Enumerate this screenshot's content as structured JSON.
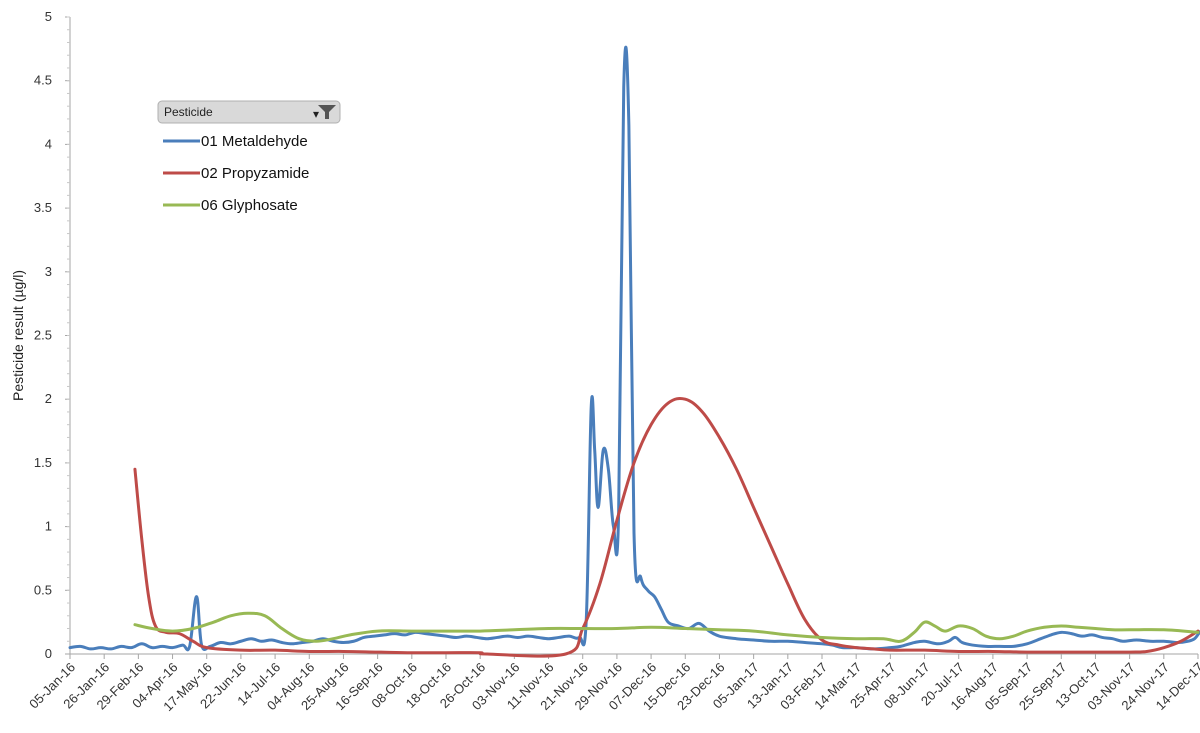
{
  "chart_data": {
    "type": "line",
    "ylabel": "Pesticide result (µg/l)",
    "ylim": [
      0,
      5
    ],
    "yticks": [
      "0",
      "0.5",
      "1",
      "1.5",
      "2",
      "2.5",
      "3",
      "3.5",
      "4",
      "4.5",
      "5"
    ],
    "x_categories": [
      "05-Jan-16",
      "26-Jan-16",
      "29-Feb-16",
      "04-Apr-16",
      "17-May-16",
      "22-Jun-16",
      "14-Jul-16",
      "04-Aug-16",
      "25-Aug-16",
      "16-Sep-16",
      "08-Oct-16",
      "18-Oct-16",
      "26-Oct-16",
      "03-Nov-16",
      "11-Nov-16",
      "21-Nov-16",
      "29-Nov-16",
      "07-Dec-16",
      "15-Dec-16",
      "23-Dec-16",
      "05-Jan-17",
      "13-Jan-17",
      "03-Feb-17",
      "14-Mar-17",
      "25-Apr-17",
      "08-Jun-17",
      "20-Jul-17",
      "16-Aug-17",
      "05-Sep-17",
      "25-Sep-17",
      "13-Oct-17",
      "03-Nov-17",
      "24-Nov-17",
      "14-Dec-17"
    ],
    "legend": {
      "title": "Pesticide",
      "position": "top-left"
    },
    "series": [
      {
        "name": "01 Metaldehyde",
        "color": "#4a7ebb",
        "points": [
          [
            0,
            0.05
          ],
          [
            0.3,
            0.06
          ],
          [
            0.6,
            0.04
          ],
          [
            0.9,
            0.05
          ],
          [
            1.2,
            0.04
          ],
          [
            1.5,
            0.06
          ],
          [
            1.8,
            0.05
          ],
          [
            2.1,
            0.08
          ],
          [
            2.4,
            0.05
          ],
          [
            2.7,
            0.06
          ],
          [
            3.0,
            0.05
          ],
          [
            3.3,
            0.07
          ],
          [
            3.5,
            0.06
          ],
          [
            3.7,
            0.45
          ],
          [
            3.85,
            0.07
          ],
          [
            4.1,
            0.06
          ],
          [
            4.4,
            0.09
          ],
          [
            4.7,
            0.08
          ],
          [
            5.0,
            0.1
          ],
          [
            5.3,
            0.12
          ],
          [
            5.6,
            0.1
          ],
          [
            5.9,
            0.11
          ],
          [
            6.2,
            0.09
          ],
          [
            6.5,
            0.08
          ],
          [
            6.8,
            0.09
          ],
          [
            7.1,
            0.1
          ],
          [
            7.4,
            0.12
          ],
          [
            7.7,
            0.1
          ],
          [
            8.0,
            0.09
          ],
          [
            8.3,
            0.1
          ],
          [
            8.6,
            0.13
          ],
          [
            8.9,
            0.14
          ],
          [
            9.2,
            0.15
          ],
          [
            9.5,
            0.16
          ],
          [
            9.8,
            0.15
          ],
          [
            10.1,
            0.17
          ],
          [
            10.4,
            0.16
          ],
          [
            10.7,
            0.15
          ],
          [
            11.0,
            0.14
          ],
          [
            11.3,
            0.13
          ],
          [
            11.6,
            0.14
          ],
          [
            11.9,
            0.13
          ],
          [
            12.2,
            0.12
          ],
          [
            12.5,
            0.13
          ],
          [
            12.8,
            0.14
          ],
          [
            13.1,
            0.13
          ],
          [
            13.4,
            0.14
          ],
          [
            13.7,
            0.13
          ],
          [
            14.0,
            0.12
          ],
          [
            14.3,
            0.13
          ],
          [
            14.6,
            0.14
          ],
          [
            14.9,
            0.13
          ],
          [
            15.1,
            0.25
          ],
          [
            15.25,
            1.95
          ],
          [
            15.35,
            1.6
          ],
          [
            15.45,
            1.15
          ],
          [
            15.6,
            1.6
          ],
          [
            15.75,
            1.45
          ],
          [
            15.9,
            1.0
          ],
          [
            16.05,
            1.1
          ],
          [
            16.2,
            4.45
          ],
          [
            16.35,
            4.15
          ],
          [
            16.5,
            0.95
          ],
          [
            16.7,
            0.6
          ],
          [
            16.9,
            0.5
          ],
          [
            17.1,
            0.45
          ],
          [
            17.3,
            0.35
          ],
          [
            17.5,
            0.25
          ],
          [
            17.8,
            0.22
          ],
          [
            18.1,
            0.2
          ],
          [
            18.4,
            0.24
          ],
          [
            18.7,
            0.18
          ],
          [
            19.0,
            0.14
          ],
          [
            19.5,
            0.12
          ],
          [
            20.0,
            0.11
          ],
          [
            20.5,
            0.1
          ],
          [
            21.0,
            0.1
          ],
          [
            21.5,
            0.09
          ],
          [
            22.0,
            0.08
          ],
          [
            22.3,
            0.07
          ],
          [
            22.6,
            0.05
          ],
          [
            23.0,
            0.05
          ],
          [
            23.5,
            0.04
          ],
          [
            24.0,
            0.05
          ],
          [
            24.3,
            0.06
          ],
          [
            24.7,
            0.09
          ],
          [
            25.0,
            0.1
          ],
          [
            25.4,
            0.08
          ],
          [
            25.7,
            0.1
          ],
          [
            25.9,
            0.13
          ],
          [
            26.1,
            0.09
          ],
          [
            26.4,
            0.07
          ],
          [
            26.8,
            0.06
          ],
          [
            27.2,
            0.06
          ],
          [
            27.6,
            0.06
          ],
          [
            28.0,
            0.08
          ],
          [
            28.4,
            0.12
          ],
          [
            28.7,
            0.15
          ],
          [
            29.0,
            0.17
          ],
          [
            29.3,
            0.16
          ],
          [
            29.6,
            0.14
          ],
          [
            29.9,
            0.15
          ],
          [
            30.2,
            0.13
          ],
          [
            30.5,
            0.12
          ],
          [
            30.8,
            0.1
          ],
          [
            31.2,
            0.11
          ],
          [
            31.6,
            0.1
          ],
          [
            32.0,
            0.1
          ],
          [
            32.4,
            0.09
          ],
          [
            32.7,
            0.1
          ],
          [
            32.9,
            0.12
          ],
          [
            33.1,
            0.18
          ],
          [
            33.3,
            0.15
          ],
          [
            33.5,
            0.12
          ],
          [
            33.75,
            0.1
          ]
        ]
      },
      {
        "name": "02 Propyzamide",
        "color": "#be4b48",
        "points": [
          [
            1.9,
            1.45
          ],
          [
            2.1,
            0.9
          ],
          [
            2.3,
            0.45
          ],
          [
            2.5,
            0.22
          ],
          [
            2.8,
            0.17
          ],
          [
            3.2,
            0.16
          ],
          [
            3.6,
            0.1
          ],
          [
            4.0,
            0.05
          ],
          [
            5.0,
            0.03
          ],
          [
            6.0,
            0.03
          ],
          [
            7.0,
            0.02
          ],
          [
            8.0,
            0.02
          ],
          [
            9.0,
            0.015
          ],
          [
            10.0,
            0.01
          ],
          [
            11.0,
            0.01
          ],
          [
            12.0,
            0.01
          ],
          [
            12.2,
            0.0
          ],
          [
            14.5,
            0.0
          ],
          [
            15.0,
            0.2
          ],
          [
            15.5,
            0.55
          ],
          [
            16.0,
            1.05
          ],
          [
            16.5,
            1.5
          ],
          [
            17.0,
            1.8
          ],
          [
            17.5,
            1.97
          ],
          [
            18.0,
            2.0
          ],
          [
            18.5,
            1.9
          ],
          [
            19.0,
            1.7
          ],
          [
            19.5,
            1.45
          ],
          [
            20.0,
            1.15
          ],
          [
            20.5,
            0.85
          ],
          [
            21.0,
            0.55
          ],
          [
            21.5,
            0.27
          ],
          [
            22.0,
            0.11
          ],
          [
            22.5,
            0.07
          ],
          [
            23.0,
            0.05
          ],
          [
            23.5,
            0.04
          ],
          [
            24.0,
            0.03
          ],
          [
            25.0,
            0.03
          ],
          [
            26.0,
            0.02
          ],
          [
            27.0,
            0.02
          ],
          [
            28.0,
            0.015
          ],
          [
            29.0,
            0.015
          ],
          [
            30.0,
            0.015
          ],
          [
            31.0,
            0.015
          ],
          [
            31.5,
            0.02
          ],
          [
            32.0,
            0.05
          ],
          [
            32.5,
            0.1
          ],
          [
            33.0,
            0.18
          ]
        ]
      },
      {
        "name": "06 Glyphosate",
        "color": "#98b954",
        "points": [
          [
            1.9,
            0.23
          ],
          [
            2.4,
            0.2
          ],
          [
            3.0,
            0.18
          ],
          [
            3.6,
            0.2
          ],
          [
            4.2,
            0.25
          ],
          [
            4.7,
            0.3
          ],
          [
            5.2,
            0.32
          ],
          [
            5.7,
            0.3
          ],
          [
            6.2,
            0.2
          ],
          [
            6.7,
            0.12
          ],
          [
            7.2,
            0.1
          ],
          [
            7.7,
            0.12
          ],
          [
            8.2,
            0.15
          ],
          [
            9.0,
            0.18
          ],
          [
            10.0,
            0.18
          ],
          [
            11.0,
            0.18
          ],
          [
            12.0,
            0.18
          ],
          [
            13.0,
            0.19
          ],
          [
            14.0,
            0.2
          ],
          [
            15.0,
            0.2
          ],
          [
            16.0,
            0.2
          ],
          [
            17.0,
            0.21
          ],
          [
            18.0,
            0.2
          ],
          [
            19.0,
            0.19
          ],
          [
            20.0,
            0.18
          ],
          [
            21.0,
            0.15
          ],
          [
            22.0,
            0.13
          ],
          [
            23.0,
            0.12
          ],
          [
            23.8,
            0.12
          ],
          [
            24.3,
            0.1
          ],
          [
            24.7,
            0.17
          ],
          [
            25.0,
            0.25
          ],
          [
            25.3,
            0.22
          ],
          [
            25.6,
            0.18
          ],
          [
            26.0,
            0.22
          ],
          [
            26.4,
            0.2
          ],
          [
            26.8,
            0.14
          ],
          [
            27.2,
            0.12
          ],
          [
            27.6,
            0.14
          ],
          [
            28.0,
            0.18
          ],
          [
            28.5,
            0.21
          ],
          [
            29.0,
            0.22
          ],
          [
            29.5,
            0.21
          ],
          [
            30.0,
            0.2
          ],
          [
            30.5,
            0.19
          ],
          [
            31.0,
            0.19
          ],
          [
            32.0,
            0.19
          ],
          [
            33.0,
            0.17
          ]
        ]
      }
    ]
  }
}
